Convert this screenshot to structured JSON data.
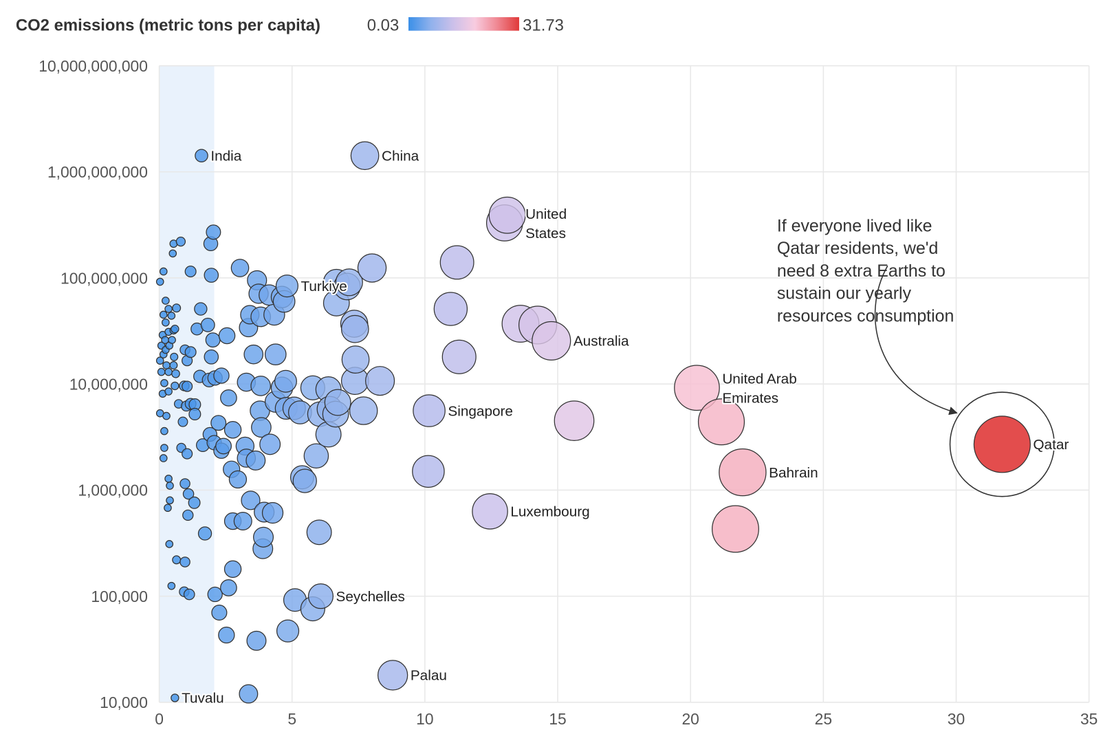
{
  "chart_data": {
    "type": "scatter",
    "title": "CO2 emissions (metric tons per capita)",
    "color_scale": {
      "min_label": "0.03",
      "max_label": "31.73",
      "min": 0.03,
      "max": 31.73,
      "colors": [
        "#3a8fe8",
        "#8fb1ec",
        "#cbc0ea",
        "#f8cce0",
        "#f08893",
        "#e03a3a"
      ]
    },
    "x_axis": {
      "range": [
        0,
        35
      ],
      "ticks": [
        "0",
        "5",
        "10",
        "15",
        "20",
        "25",
        "30",
        "35"
      ],
      "tick_values": [
        0,
        5,
        10,
        15,
        20,
        25,
        30,
        35
      ],
      "label": ""
    },
    "y_axis": {
      "scale": "log",
      "range": [
        10000,
        10000000000
      ],
      "ticks": [
        "10,000,000,000",
        "1,000,000,000",
        "100,000,000",
        "10,000,000",
        "1,000,000",
        "100,000",
        "10,000"
      ],
      "tick_values": [
        10000000000,
        1000000000,
        100000000,
        10000000,
        1000000,
        100000,
        10000
      ],
      "label": ""
    },
    "grid": true,
    "highlight_band_x": [
      0,
      2.07
    ],
    "size_encodes": "x",
    "labeled_points": [
      {
        "label": "India",
        "x": 1.59,
        "y": 1420000000
      },
      {
        "label": "China",
        "x": 7.74,
        "y": 1420000000
      },
      {
        "label": "United States",
        "x": 13.0,
        "y": 330000000.0
      },
      {
        "label": "Turkiye",
        "x": 4.81,
        "y": 84000000
      },
      {
        "label": "Australia",
        "x": 14.76,
        "y": 25500000
      },
      {
        "label": "United Arab Emirates",
        "x": 20.24,
        "y": 9200000
      },
      {
        "label": "Singapore",
        "x": 10.16,
        "y": 5600000
      },
      {
        "label": "Qatar",
        "x": 31.73,
        "y": 2700000
      },
      {
        "label": "Bahrain",
        "x": 21.96,
        "y": 1470000
      },
      {
        "label": "Luxembourg",
        "x": 12.45,
        "y": 630000
      },
      {
        "label": "Seychelles",
        "x": 6.08,
        "y": 100000
      },
      {
        "label": "Palau",
        "x": 8.79,
        "y": 18000
      },
      {
        "label": "Tuvalu",
        "x": 0.59,
        "y": 11000
      }
    ],
    "points": [
      [
        13.1,
        390000000
      ],
      [
        0.81,
        220000000.0
      ],
      [
        0.54,
        210000000.0
      ],
      [
        0.51,
        170000000.0
      ],
      [
        0.16,
        115000000.0
      ],
      [
        0.03,
        92000000.0
      ],
      [
        1.18,
        115000000.0
      ],
      [
        1.96,
        106000000.0
      ],
      [
        2.04,
        270000000.0
      ],
      [
        1.94,
        210000000.0
      ],
      [
        0.24,
        61000000.0
      ],
      [
        0.35,
        51000000.0
      ],
      [
        0.65,
        52000000.0
      ],
      [
        0.16,
        45000000.0
      ],
      [
        0.46,
        44000000.0
      ],
      [
        0.24,
        38000000.0
      ],
      [
        0.13,
        29000000.0
      ],
      [
        0.54,
        32000000.0
      ],
      [
        0.59,
        33000000.0
      ],
      [
        0.35,
        31000000.0
      ],
      [
        0.22,
        26000000.0
      ],
      [
        0.48,
        26000000.0
      ],
      [
        0.08,
        23000000.0
      ],
      [
        0.38,
        23000000.0
      ],
      [
        0.24,
        21000000.0
      ],
      [
        0.16,
        19000000.0
      ],
      [
        0.97,
        21000000.0
      ],
      [
        1.18,
        20000000.0
      ],
      [
        0.56,
        18000000.0
      ],
      [
        0.03,
        16600000.0
      ],
      [
        0.54,
        15000000.0
      ],
      [
        0.27,
        15000000.0
      ],
      [
        1.05,
        16600000.0
      ],
      [
        0.08,
        13000000.0
      ],
      [
        0.35,
        13000000.0
      ],
      [
        0.62,
        12500000.0
      ],
      [
        0.94,
        9600000.0
      ],
      [
        0.19,
        10200000.0
      ],
      [
        0.59,
        9600000.0
      ],
      [
        1.05,
        9500000.0
      ],
      [
        0.13,
        8100000.0
      ],
      [
        0.35,
        8500000.0
      ],
      [
        0.73,
        6500000.0
      ],
      [
        1.18,
        6500000.0
      ],
      [
        1.34,
        6400000.0
      ],
      [
        1.02,
        6200000.0
      ],
      [
        0.03,
        5300000.0
      ],
      [
        0.27,
        5000000.0
      ],
      [
        1.34,
        5200000.0
      ],
      [
        0.89,
        4400000.0
      ],
      [
        0.19,
        3600000.0
      ],
      [
        0.83,
        2500000.0
      ],
      [
        1.05,
        2200000.0
      ],
      [
        0.19,
        2500000.0
      ],
      [
        0.16,
        2000000.0
      ],
      [
        0.35,
        1280000.0
      ],
      [
        0.4,
        1100000.0
      ],
      [
        0.97,
        1150000.0
      ],
      [
        1.1,
        920000.0
      ],
      [
        1.32,
        760000.0
      ],
      [
        0.4,
        800000.0
      ],
      [
        0.32,
        680000.0
      ],
      [
        1.08,
        580000.0
      ],
      [
        0.38,
        310000.0
      ],
      [
        0.65,
        220000.0
      ],
      [
        0.97,
        210000.0
      ],
      [
        0.46,
        125000.0
      ],
      [
        0.94,
        110000.0
      ],
      [
        1.13,
        104000.0
      ],
      [
        1.56,
        51000000.0
      ],
      [
        1.83,
        36000000.0
      ],
      [
        1.42,
        33000000.0
      ],
      [
        2.02,
        26000000.0
      ],
      [
        2.55,
        28500000.0
      ],
      [
        1.96,
        18000000.0
      ],
      [
        2.34,
        12000000.0
      ],
      [
        1.53,
        11800000.0
      ],
      [
        1.88,
        10900000.0
      ],
      [
        2.1,
        11400000.0
      ],
      [
        2.61,
        7400000.0
      ],
      [
        2.23,
        4300000.0
      ],
      [
        1.91,
        3350000.0
      ],
      [
        1.64,
        2650000.0
      ],
      [
        2.07,
        2800000.0
      ],
      [
        2.42,
        2600000.0
      ],
      [
        2.34,
        2350000.0
      ],
      [
        2.77,
        3700000.0
      ],
      [
        3.23,
        2600000.0
      ],
      [
        3.28,
        2000000.0
      ],
      [
        3.63,
        1900000.0
      ],
      [
        4.17,
        2700000.0
      ],
      [
        3.84,
        3900000.0
      ],
      [
        3.79,
        5600000.0
      ],
      [
        2.72,
        1570000.0
      ],
      [
        2.96,
        1260000.0
      ],
      [
        1.72,
        390000.0
      ],
      [
        2.77,
        510000.0
      ],
      [
        3.15,
        510000.0
      ],
      [
        3.44,
        800000.0
      ],
      [
        3.95,
        620000.0
      ],
      [
        4.27,
        610000.0
      ],
      [
        3.92,
        360000.0
      ],
      [
        3.9,
        280000.0
      ],
      [
        2.77,
        180000.0
      ],
      [
        2.61,
        120000.0
      ],
      [
        2.1,
        104000.0
      ],
      [
        2.26,
        70000.0
      ],
      [
        2.53,
        43000.0
      ],
      [
        3.66,
        38000.0
      ],
      [
        4.84,
        47000.0
      ],
      [
        5.11,
        92000.0
      ],
      [
        5.78,
        76000.0
      ],
      [
        3.04,
        124000000.0
      ],
      [
        3.68,
        95000000.0
      ],
      [
        3.74,
        71000000.0
      ],
      [
        4.14,
        69000000.0
      ],
      [
        4.7,
        60000000.0
      ],
      [
        4.62,
        66000000.0
      ],
      [
        3.41,
        45000000.0
      ],
      [
        3.82,
        43000000.0
      ],
      [
        4.33,
        45000000.0
      ],
      [
        3.36,
        34000000.0
      ],
      [
        3.55,
        19000000.0
      ],
      [
        4.38,
        19000000.0
      ],
      [
        3.28,
        10400000.0
      ],
      [
        3.82,
        9600000.0
      ],
      [
        4.76,
        10600000.0
      ],
      [
        4.62,
        9200000.0
      ],
      [
        4.38,
        6800000.0
      ],
      [
        4.78,
        5900000.0
      ],
      [
        5.08,
        5900000.0
      ],
      [
        5.3,
        5400000.0
      ],
      [
        5.78,
        9200000.0
      ],
      [
        6.37,
        8900000.0
      ],
      [
        6.05,
        5200000.0
      ],
      [
        6.42,
        5800000.0
      ],
      [
        6.64,
        5200000.0
      ],
      [
        6.72,
        6700000.0
      ],
      [
        6.37,
        3350000.0
      ],
      [
        5.91,
        2100000.0
      ],
      [
        5.38,
        1320000.0
      ],
      [
        5.48,
        1220000.0
      ],
      [
        6.02,
        400000.0
      ],
      [
        6.67,
        91000000.0
      ],
      [
        7.07,
        83000000.0
      ],
      [
        7.15,
        91000000.0
      ],
      [
        6.67,
        58000000.0
      ],
      [
        7.34,
        37000000.0
      ],
      [
        7.37,
        33000000.0
      ],
      [
        7.39,
        17000000.0
      ],
      [
        7.37,
        10700000.0
      ],
      [
        8.31,
        10700000.0
      ],
      [
        7.69,
        5600000.0
      ],
      [
        8.01,
        124000000.0
      ],
      [
        3.36,
        12000.0
      ],
      [
        11.21,
        140000000.0
      ],
      [
        10.97,
        51000000.0
      ],
      [
        11.29,
        18000000.0
      ],
      [
        10.13,
        1500000.0
      ],
      [
        13.6,
        37000000.0
      ],
      [
        14.25,
        36000000.0
      ],
      [
        15.62,
        4500000.0
      ],
      [
        21.16,
        4400000.0
      ],
      [
        21.69,
        430000.0
      ]
    ],
    "annotation": {
      "lines": [
        "If everyone lived like",
        "Qatar residents, we'd",
        "need 8 extra Earths to",
        "sustain our yearly",
        "resources consumption"
      ],
      "target": "Qatar"
    }
  }
}
